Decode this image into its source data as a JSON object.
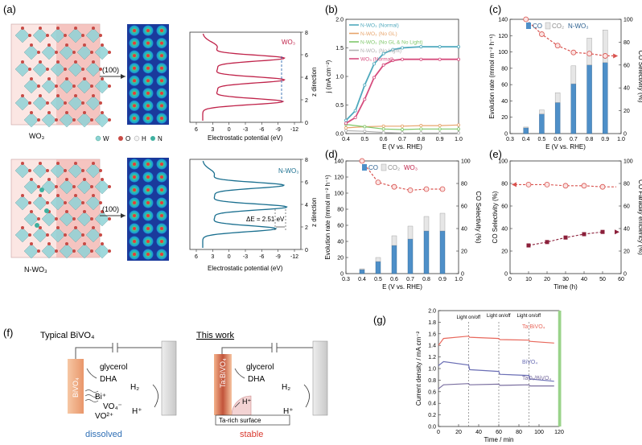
{
  "panel_labels": {
    "a": "(a)",
    "b": "(b)",
    "c": "(c)",
    "d": "(d)",
    "e": "(e)",
    "f": "(f)",
    "g": "(g)"
  },
  "panel_a": {
    "wo3_label": "WO₃",
    "nwo3_label": "N-WO₃",
    "arrow_label": "(100)",
    "legend": {
      "w": "W",
      "o": "O",
      "h": "H",
      "n": "N"
    },
    "top_curve_label": "WO₃",
    "bottom_curve_label": "N-WO₃",
    "delta_e": "ΔE = 2.51 eV",
    "xlabel": "Electrostatic potential (eV)",
    "ylabel": "z direction",
    "xticks": [
      "6",
      "3",
      "0",
      "-3",
      "-6",
      "-9",
      "-12"
    ],
    "yticks": [
      "0",
      "2",
      "4",
      "6",
      "8"
    ],
    "colors": {
      "wo3_curve": "#c0234a",
      "nwo3_curve": "#1a6f8f",
      "w_atom": "#8fd3d7",
      "o_atom": "#c84a45",
      "n_atom": "#3fb0a0",
      "h_atom": "#f4f4f4"
    }
  },
  "chart_data": [
    {
      "id": "b",
      "type": "line",
      "title": "",
      "xlabel": "E (V vs. RHE)",
      "ylabel": "j (mA cm⁻²)",
      "xlim": [
        0.4,
        1.0
      ],
      "ylim": [
        0,
        2.0
      ],
      "xticks": [
        0.4,
        0.5,
        0.6,
        0.7,
        0.8,
        0.9,
        1.0
      ],
      "yticks": [
        0.0,
        0.5,
        1.0,
        1.5,
        2.0
      ],
      "series": [
        {
          "name": "N-WO₃ (Normal)",
          "color": "#4fa9bd",
          "x": [
            0.4,
            0.45,
            0.5,
            0.55,
            0.6,
            0.65,
            0.7,
            0.8,
            0.9,
            1.0
          ],
          "y": [
            0.23,
            0.4,
            0.85,
            1.22,
            1.4,
            1.47,
            1.5,
            1.52,
            1.52,
            1.52
          ]
        },
        {
          "name": "N-WO₃ (No GL)",
          "color": "#e7a46b",
          "x": [
            0.4,
            0.5,
            0.6,
            0.7,
            0.8,
            0.9,
            1.0
          ],
          "y": [
            0.1,
            0.12,
            0.13,
            0.13,
            0.14,
            0.14,
            0.15
          ]
        },
        {
          "name": "N-WO₃ (No GL & No Light)",
          "color": "#7fc86a",
          "x": [
            0.4,
            0.5,
            0.6,
            0.7,
            0.8,
            0.9,
            1.0
          ],
          "y": [
            0.16,
            0.12,
            0.08,
            0.07,
            0.08,
            0.08,
            0.08
          ]
        },
        {
          "name": "N-WO₃ (No Light)",
          "color": "#b0b0b0",
          "x": [
            0.4,
            0.5,
            0.6,
            0.7,
            0.8,
            0.9,
            1.0
          ],
          "y": [
            0.05,
            0.04,
            0.02,
            0.01,
            0.01,
            0.01,
            0.01
          ]
        },
        {
          "name": "WO₃ (Normal)",
          "color": "#d64d7e",
          "x": [
            0.4,
            0.45,
            0.5,
            0.55,
            0.6,
            0.65,
            0.7,
            0.8,
            0.9,
            1.0
          ],
          "y": [
            0.18,
            0.28,
            0.6,
            0.98,
            1.2,
            1.28,
            1.3,
            1.3,
            1.3,
            1.3
          ]
        }
      ]
    },
    {
      "id": "c",
      "type": "bar",
      "title": "",
      "xlabel": "E (V vs. RHE)",
      "ylabel": "Evolution rate (mmol m⁻² h⁻¹)",
      "y2label": "CO Selectivity (%)",
      "xlim": [
        0.3,
        1.0
      ],
      "ylim": [
        0,
        140
      ],
      "y2lim": [
        0,
        100
      ],
      "xticks": [
        0.3,
        0.4,
        0.5,
        0.6,
        0.7,
        0.8,
        0.9,
        1.0
      ],
      "yticks": [
        0,
        20,
        40,
        60,
        80,
        100,
        120,
        140
      ],
      "y2ticks": [
        0,
        20,
        40,
        60,
        80,
        100
      ],
      "legend": {
        "co": "CO",
        "co2": "CO₂",
        "sample": "N-WO₃"
      },
      "categories": [
        0.4,
        0.5,
        0.6,
        0.7,
        0.8,
        0.9
      ],
      "co": [
        7,
        24,
        38,
        61,
        84,
        87
      ],
      "co2": [
        1,
        5,
        12,
        22,
        33,
        40
      ],
      "selectivity": [
        100,
        87,
        77,
        71,
        70,
        68
      ],
      "selectivity_ext": [
        0.95,
        68
      ]
    },
    {
      "id": "d",
      "type": "bar",
      "title": "",
      "xlabel": "E (V vs. RHE)",
      "ylabel": "Evolution rate (mmol m⁻² h⁻¹)",
      "y2label": "CO Selectivity (%)",
      "xlim": [
        0.3,
        1.0
      ],
      "ylim": [
        0,
        140
      ],
      "y2lim": [
        0,
        100
      ],
      "xticks": [
        0.3,
        0.4,
        0.5,
        0.6,
        0.7,
        0.8,
        0.9,
        1.0
      ],
      "yticks": [
        0,
        20,
        40,
        60,
        80,
        100,
        120,
        140
      ],
      "y2ticks": [
        0,
        20,
        40,
        60,
        80,
        100
      ],
      "legend": {
        "co": "CO",
        "co2": "CO₂",
        "sample": "WO₃"
      },
      "categories": [
        0.4,
        0.5,
        0.6,
        0.7,
        0.8,
        0.9
      ],
      "co": [
        5,
        15,
        35,
        43,
        53,
        53
      ],
      "co2": [
        1,
        5,
        12,
        16,
        18,
        22
      ],
      "selectivity": [
        100,
        81,
        77,
        74,
        75,
        75
      ]
    },
    {
      "id": "e",
      "type": "line",
      "title": "",
      "xlabel": "Time (h)",
      "ylabel": "CO Selectivity (%)",
      "y2label": "CO Faraday efficiency (%)",
      "xlim": [
        0,
        60
      ],
      "ylim": [
        0,
        100
      ],
      "y2lim": [
        0,
        100
      ],
      "xticks": [
        0,
        10,
        20,
        30,
        40,
        50,
        60
      ],
      "yticks": [
        0,
        20,
        40,
        60,
        80,
        100
      ],
      "y2ticks": [
        0,
        20,
        40,
        60,
        80,
        100
      ],
      "series": [
        {
          "name": "CO Selectivity",
          "axis": "left",
          "color": "#d9534f",
          "x": [
            10,
            20,
            30,
            40,
            50
          ],
          "y": [
            79,
            79,
            78,
            78,
            77
          ]
        },
        {
          "name": "CO Faraday efficiency",
          "axis": "right",
          "color": "#8b1f3a",
          "x": [
            10,
            20,
            30,
            40,
            50
          ],
          "y": [
            25,
            28,
            32,
            35,
            37
          ]
        }
      ]
    },
    {
      "id": "g",
      "type": "line",
      "title": "",
      "xlabel": "Time / min",
      "ylabel": "Current density / mA cm⁻²",
      "xlim": [
        0,
        120
      ],
      "ylim": [
        0,
        2.0
      ],
      "xticks": [
        0,
        20,
        40,
        60,
        80,
        100,
        120
      ],
      "yticks": [
        0.0,
        0.2,
        0.4,
        0.6,
        0.8,
        1.0,
        1.2,
        1.4,
        1.6,
        1.8,
        2.0
      ],
      "annotations": [
        "Light on/off",
        "Light on/off",
        "Light on/off"
      ],
      "annotation_x": [
        30,
        60,
        90
      ],
      "series": [
        {
          "name": "Ta:BiVO₄",
          "color": "#e8685c",
          "x": [
            0,
            5,
            30,
            31,
            60,
            61,
            90,
            91,
            115
          ],
          "y": [
            1.4,
            1.52,
            1.56,
            1.54,
            1.52,
            1.5,
            1.49,
            1.47,
            1.44
          ]
        },
        {
          "name": "BiVO₄",
          "color": "#6b6fb5",
          "x": [
            0,
            5,
            30,
            31,
            60,
            61,
            90,
            91,
            115
          ],
          "y": [
            1.05,
            1.12,
            1.06,
            0.98,
            0.95,
            0.9,
            0.88,
            0.82,
            0.78
          ]
        },
        {
          "name": "TaOₓ/BiVO₄",
          "color": "#7a6fa0",
          "x": [
            0,
            5,
            30,
            31,
            60,
            61,
            90,
            91,
            115
          ],
          "y": [
            0.65,
            0.72,
            0.74,
            0.72,
            0.73,
            0.71,
            0.72,
            0.7,
            0.7
          ]
        }
      ]
    }
  ],
  "panel_f": {
    "left_title": "Typical BiVO₄",
    "right_title": "This work",
    "left_electrode": "BiVO₄",
    "right_electrode": "Ta:BiVO₄",
    "glycerol": "glycerol",
    "dha": "DHA",
    "h2": "H₂",
    "hplus": "H⁺",
    "bi": "Bi⁺",
    "vo4": "VO₄⁻",
    "vo2": "VO²⁺",
    "surface": "Ta-rich surface",
    "left_status": "dissolved",
    "right_status": "stable",
    "colors": {
      "dissolved": "#2f6fb5",
      "stable": "#d93a2f",
      "electrode": "#f0b48c"
    }
  }
}
